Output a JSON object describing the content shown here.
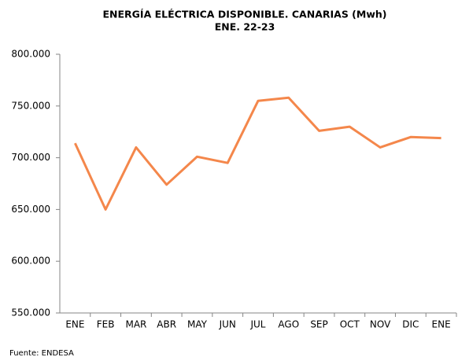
{
  "chart_data": {
    "type": "line",
    "title": "ENERGÍA ELÉCTRICA DISPONIBLE. CANARIAS (Mwh)",
    "subtitle": "ENE. 22-23",
    "categories": [
      "ENE",
      "FEB",
      "MAR",
      "ABR",
      "MAY",
      "JUN",
      "JUL",
      "AGO",
      "SEP",
      "OCT",
      "NOV",
      "DIC",
      "ENE"
    ],
    "series": [
      {
        "name": "Energía eléctrica disponible",
        "color": "#f4874b",
        "values": [
          714000,
          650000,
          710000,
          674000,
          701000,
          695000,
          755000,
          758000,
          726000,
          730000,
          710000,
          720000,
          719000
        ]
      }
    ],
    "ylim": [
      550000,
      800000
    ],
    "yticks": [
      {
        "value": 550000,
        "label": "550.000"
      },
      {
        "value": 600000,
        "label": "600.000"
      },
      {
        "value": 650000,
        "label": "650.000"
      },
      {
        "value": 700000,
        "label": "700.000"
      },
      {
        "value": 750000,
        "label": "750.000"
      },
      {
        "value": 800000,
        "label": "800.000"
      }
    ],
    "grid": false,
    "source": "Fuente: ENDESA"
  }
}
